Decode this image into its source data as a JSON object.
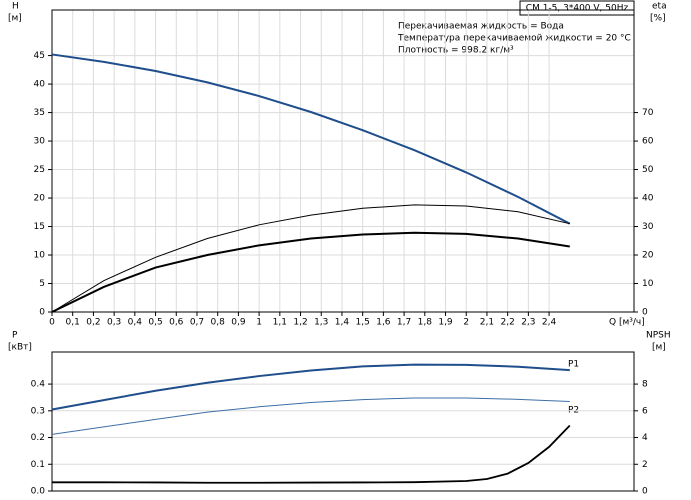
{
  "chart_data": [
    {
      "type": "line",
      "info": {
        "model": "CM 1-5, 3*400 V, 50Hz",
        "lines": [
          "Перекачиваемая жидкость = Вода",
          "Температура перекачиваемой жидкости = 20 °C",
          "Плотность = 998.2 кг/м³"
        ]
      },
      "y_label": "H",
      "y_unit": "[м]",
      "y2_label": "eta",
      "y2_unit": "[%]",
      "x_label": "Q [м³/ч]",
      "xlim": [
        0,
        2.81
      ],
      "xticks": [
        0,
        {
          "value": 0.1,
          "label": "0,1"
        },
        {
          "value": 0.2,
          "label": "0,2"
        },
        {
          "value": 0.3,
          "label": "0,3"
        },
        {
          "value": 0.4,
          "label": "0,4"
        },
        {
          "value": 0.5,
          "label": "0,5"
        },
        {
          "value": 0.6,
          "label": "0,6"
        },
        {
          "value": 0.7,
          "label": "0,7"
        },
        {
          "value": 0.8,
          "label": "0,8"
        },
        {
          "value": 0.9,
          "label": "0,9"
        },
        1,
        {
          "value": 1.1,
          "label": "1,1"
        },
        {
          "value": 1.2,
          "label": "1,2"
        },
        {
          "value": 1.3,
          "label": "1,3"
        },
        {
          "value": 1.4,
          "label": "1,4"
        },
        {
          "value": 1.5,
          "label": "1,5"
        },
        {
          "value": 1.6,
          "label": "1,6"
        },
        {
          "value": 1.7,
          "label": "1,7"
        },
        {
          "value": 1.8,
          "label": "1,8"
        },
        {
          "value": 1.9,
          "label": "1,9"
        },
        2,
        {
          "value": 2.1,
          "label": "2,1"
        },
        {
          "value": 2.2,
          "label": "2,2"
        },
        {
          "value": 2.3,
          "label": "2,3"
        },
        {
          "value": 2.4,
          "label": "2,4"
        }
      ],
      "ylim": [
        0,
        53
      ],
      "yticks": [
        0,
        5,
        10,
        15,
        20,
        25,
        30,
        35,
        40,
        45
      ],
      "y2lim": [
        0,
        106
      ],
      "y2ticks": [
        0,
        10,
        20,
        30,
        40,
        50,
        60,
        70
      ],
      "grid": true,
      "series": [
        {
          "color": "#1f4e8c",
          "x": [
            0,
            0.25,
            0.5,
            0.75,
            1,
            1.25,
            1.5,
            1.75,
            2,
            2.25,
            2.5
          ],
          "values": [
            45.2,
            43.9,
            42.3,
            40.3,
            37.9,
            35.1,
            31.9,
            28.4,
            24.5,
            20.2,
            15.5
          ]
        },
        {
          "color": "#000000",
          "axis": "y2",
          "x": [
            0,
            0.25,
            0.5,
            0.75,
            1,
            1.25,
            1.5,
            1.75,
            2,
            2.25,
            2.5
          ],
          "values": [
            0,
            11,
            19.2,
            25.8,
            30.6,
            34,
            36.4,
            37.6,
            37.2,
            35.2,
            31
          ]
        },
        {
          "color": "#000000",
          "axis": "y2",
          "x": [
            0,
            0.25,
            0.5,
            0.75,
            1,
            1.25,
            1.5,
            1.75,
            2,
            2.25,
            2.5
          ],
          "values": [
            0,
            8.8,
            15.6,
            20,
            23.4,
            25.8,
            27.2,
            27.8,
            27.4,
            25.8,
            23
          ]
        }
      ]
    },
    {
      "type": "line",
      "y_label": "P",
      "y_unit": "[кВт]",
      "y2_label": "NPSH",
      "y2_unit": "[м]",
      "xlim": [
        0,
        2.81
      ],
      "ylim": [
        0,
        0.52
      ],
      "yticks": [
        {
          "value": 0,
          "label": "0.0"
        },
        0.1,
        0.2,
        0.3,
        0.4
      ],
      "y2lim": [
        0,
        10.4
      ],
      "y2ticks": [
        0,
        2,
        4,
        6,
        8
      ],
      "grid": true,
      "series": [
        {
          "name": "P1",
          "color": "#1f4e8c",
          "x": [
            0,
            0.25,
            0.5,
            0.75,
            1,
            1.25,
            1.5,
            1.75,
            2,
            2.25,
            2.5
          ],
          "values": [
            0.305,
            0.34,
            0.375,
            0.405,
            0.43,
            0.451,
            0.466,
            0.473,
            0.472,
            0.465,
            0.452
          ]
        },
        {
          "name": "P2",
          "color": "#3d6fa8",
          "x": [
            0,
            0.25,
            0.5,
            0.75,
            1,
            1.25,
            1.5,
            1.75,
            2,
            2.25,
            2.5
          ],
          "values": [
            0.212,
            0.24,
            0.268,
            0.295,
            0.315,
            0.331,
            0.342,
            0.348,
            0.348,
            0.343,
            0.335
          ]
        },
        {
          "color": "#000000",
          "axis": "y2",
          "x": [
            0,
            0.25,
            0.5,
            0.75,
            1,
            1.25,
            1.5,
            1.75,
            2,
            2.1,
            2.2,
            2.3,
            2.4,
            2.5
          ],
          "values": [
            0.65,
            0.65,
            0.64,
            0.62,
            0.62,
            0.63,
            0.64,
            0.66,
            0.75,
            0.9,
            1.3,
            2.1,
            3.3,
            4.9
          ]
        }
      ]
    }
  ]
}
